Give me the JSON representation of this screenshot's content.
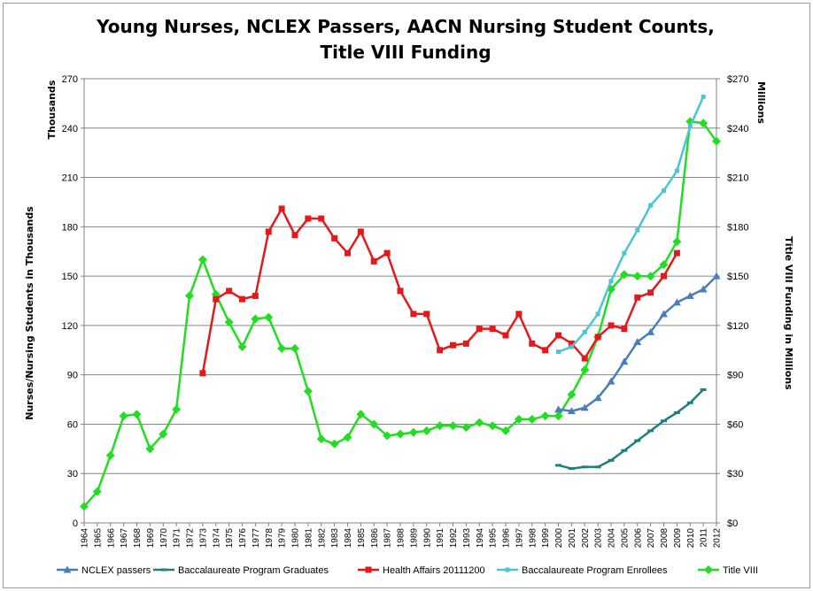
{
  "chart_data": {
    "type": "line",
    "title_line1": "Young Nurses, NCLEX Passers, AACN Nursing Student Counts,",
    "title_line2": "Title VIII Funding",
    "y_left_unit": "Thousands",
    "y_left_label": "Nurses/Nursing Students in Thousands",
    "y_right_unit": "Millions",
    "y_right_label": "Title VIII Funding in Millions",
    "ylim": [
      0,
      270
    ],
    "y_ticks": [
      0,
      30,
      60,
      90,
      120,
      150,
      180,
      210,
      240,
      270
    ],
    "y_left_tick_labels": [
      "0",
      "30",
      "60",
      "90",
      "120",
      "150",
      "180",
      "210",
      "240",
      "270"
    ],
    "y_right_tick_labels": [
      "$0",
      "$30",
      "$60",
      "$90",
      "$120",
      "$150",
      "$180",
      "$210",
      "$240",
      "$270"
    ],
    "grid": true,
    "legend_position": "bottom",
    "x": [
      "1964",
      "1965",
      "1966",
      "1967",
      "1968",
      "1969",
      "1970",
      "1971",
      "1972",
      "1973",
      "1974",
      "1975",
      "1976",
      "1977",
      "1978",
      "1979",
      "1980",
      "1981",
      "1982",
      "1983",
      "1984",
      "1985",
      "1986",
      "1987",
      "1988",
      "1989",
      "1990",
      "1991",
      "1992",
      "1993",
      "1994",
      "1995",
      "1996",
      "1997",
      "1998",
      "1999",
      "2000",
      "2001",
      "2002",
      "2003",
      "2004",
      "2005",
      "2006",
      "2007",
      "2008",
      "2009",
      "2010",
      "2011",
      "2012"
    ],
    "series": [
      {
        "name": "NCLEX passers",
        "color": "#4a7ebb",
        "marker": "triangle",
        "points": [
          [
            "2000",
            69
          ],
          [
            "2001",
            68
          ],
          [
            "2002",
            70
          ],
          [
            "2003",
            76
          ],
          [
            "2004",
            86
          ],
          [
            "2005",
            98
          ],
          [
            "2006",
            110
          ],
          [
            "2007",
            116
          ],
          [
            "2008",
            127
          ],
          [
            "2009",
            134
          ],
          [
            "2010",
            138
          ],
          [
            "2011",
            142
          ],
          [
            "2012",
            150
          ]
        ]
      },
      {
        "name": "Baccalaureate Program  Graduates",
        "color": "#1f7f7f",
        "marker": "dash",
        "points": [
          [
            "2000",
            35
          ],
          [
            "2001",
            33
          ],
          [
            "2002",
            34
          ],
          [
            "2003",
            34
          ],
          [
            "2004",
            38
          ],
          [
            "2005",
            44
          ],
          [
            "2006",
            50
          ],
          [
            "2007",
            56
          ],
          [
            "2008",
            62
          ],
          [
            "2009",
            67
          ],
          [
            "2010",
            73
          ],
          [
            "2011",
            81
          ]
        ]
      },
      {
        "name": "Health Affairs 20111200",
        "color": "#e31a1c",
        "marker": "square",
        "points": [
          [
            "1973",
            91
          ],
          [
            "1974",
            136
          ],
          [
            "1975",
            141
          ],
          [
            "1976",
            136
          ],
          [
            "1977",
            138
          ],
          [
            "1978",
            177
          ],
          [
            "1979",
            191
          ],
          [
            "1980",
            175
          ],
          [
            "1981",
            185
          ],
          [
            "1982",
            185
          ],
          [
            "1983",
            173
          ],
          [
            "1984",
            164
          ],
          [
            "1985",
            177
          ],
          [
            "1986",
            159
          ],
          [
            "1987",
            164
          ],
          [
            "1988",
            141
          ],
          [
            "1989",
            127
          ],
          [
            "1990",
            127
          ],
          [
            "1991",
            105
          ],
          [
            "1992",
            108
          ],
          [
            "1993",
            109
          ],
          [
            "1994",
            118
          ],
          [
            "1995",
            118
          ],
          [
            "1996",
            114
          ],
          [
            "1997",
            127
          ],
          [
            "1998",
            109
          ],
          [
            "1999",
            105
          ],
          [
            "2000",
            114
          ],
          [
            "2001",
            109
          ],
          [
            "2002",
            100
          ],
          [
            "2003",
            113
          ],
          [
            "2004",
            120
          ],
          [
            "2005",
            118
          ],
          [
            "2006",
            137
          ],
          [
            "2007",
            140
          ],
          [
            "2008",
            150
          ],
          [
            "2009",
            164
          ]
        ]
      },
      {
        "name": "Baccalaureate Program Enrollees",
        "color": "#4bc5d0",
        "marker": "small-square",
        "points": [
          [
            "2000",
            104
          ],
          [
            "2001",
            107
          ],
          [
            "2002",
            116
          ],
          [
            "2003",
            127
          ],
          [
            "2004",
            147
          ],
          [
            "2005",
            164
          ],
          [
            "2006",
            178
          ],
          [
            "2007",
            193
          ],
          [
            "2008",
            202
          ],
          [
            "2009",
            214
          ],
          [
            "2010",
            241
          ],
          [
            "2011",
            259
          ]
        ]
      },
      {
        "name": "Title VIII",
        "color": "#22dd22",
        "marker": "diamond",
        "axis": "right",
        "points": [
          [
            "1964",
            10
          ],
          [
            "1965",
            19
          ],
          [
            "1966",
            41
          ],
          [
            "1967",
            65
          ],
          [
            "1968",
            66
          ],
          [
            "1969",
            45
          ],
          [
            "1970",
            54
          ],
          [
            "1971",
            69
          ],
          [
            "1972",
            138
          ],
          [
            "1973",
            160
          ],
          [
            "1974",
            139
          ],
          [
            "1975",
            122
          ],
          [
            "1976",
            107
          ],
          [
            "1977",
            124
          ],
          [
            "1978",
            125
          ],
          [
            "1979",
            106
          ],
          [
            "1980",
            106
          ],
          [
            "1981",
            80
          ],
          [
            "1982",
            51
          ],
          [
            "1983",
            48
          ],
          [
            "1984",
            52
          ],
          [
            "1985",
            66
          ],
          [
            "1986",
            60
          ],
          [
            "1987",
            53
          ],
          [
            "1988",
            54
          ],
          [
            "1989",
            55
          ],
          [
            "1990",
            56
          ],
          [
            "1991",
            59
          ],
          [
            "1992",
            59
          ],
          [
            "1993",
            58
          ],
          [
            "1994",
            61
          ],
          [
            "1995",
            59
          ],
          [
            "1996",
            56
          ],
          [
            "1997",
            63
          ],
          [
            "1998",
            63
          ],
          [
            "1999",
            65
          ],
          [
            "2000",
            65
          ],
          [
            "2001",
            78
          ],
          [
            "2002",
            93
          ],
          [
            "2003",
            113
          ],
          [
            "2004",
            142
          ],
          [
            "2005",
            151
          ],
          [
            "2006",
            150
          ],
          [
            "2007",
            150
          ],
          [
            "2008",
            157
          ],
          [
            "2009",
            171
          ],
          [
            "2010",
            244
          ],
          [
            "2011",
            243
          ],
          [
            "2012",
            232
          ]
        ]
      }
    ]
  }
}
